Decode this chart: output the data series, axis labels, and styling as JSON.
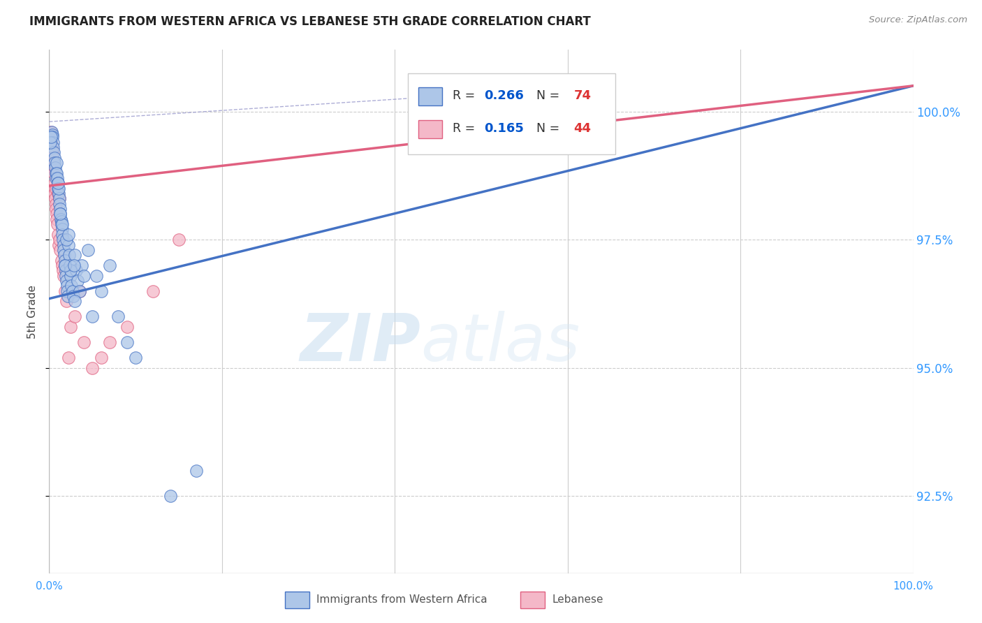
{
  "title": "IMMIGRANTS FROM WESTERN AFRICA VS LEBANESE 5TH GRADE CORRELATION CHART",
  "source": "Source: ZipAtlas.com",
  "ylabel": "5th Grade",
  "ytick_vals": [
    92.5,
    95.0,
    97.5,
    100.0
  ],
  "xmin": 0.0,
  "xmax": 100.0,
  "ymin": 91.0,
  "ymax": 101.2,
  "series1_label": "Immigrants from Western Africa",
  "series1_fill_color": "#adc6e8",
  "series1_edge_color": "#4472c4",
  "series1_R": "0.266",
  "series1_N": "74",
  "series2_label": "Lebanese",
  "series2_fill_color": "#f4b8c8",
  "series2_edge_color": "#e06080",
  "series2_R": "0.165",
  "series2_N": "44",
  "legend_R_color": "#0055cc",
  "legend_N_color": "#dd3333",
  "watermark_zip": "ZIP",
  "watermark_atlas": "atlas",
  "background_color": "#ffffff",
  "grid_color": "#cccccc",
  "blue_trend_x0": 0.0,
  "blue_trend_y0": 96.35,
  "blue_trend_x1": 100.0,
  "blue_trend_y1": 100.5,
  "pink_trend_x0": 0.0,
  "pink_trend_y0": 98.55,
  "pink_trend_x1": 100.0,
  "pink_trend_y1": 100.5,
  "dash_x0": 0.0,
  "dash_y0": 99.8,
  "dash_x1": 55.0,
  "dash_y1": 100.4,
  "blue_x": [
    0.2,
    0.3,
    0.35,
    0.4,
    0.45,
    0.5,
    0.55,
    0.6,
    0.65,
    0.7,
    0.75,
    0.8,
    0.85,
    0.9,
    0.95,
    1.0,
    1.05,
    1.1,
    1.15,
    1.2,
    1.25,
    1.3,
    1.35,
    1.4,
    1.45,
    1.5,
    1.55,
    1.6,
    1.65,
    1.7,
    1.75,
    1.8,
    1.85,
    1.9,
    1.95,
    2.0,
    2.05,
    2.1,
    2.15,
    2.2,
    2.3,
    2.4,
    2.5,
    2.6,
    2.7,
    2.8,
    3.0,
    3.1,
    3.3,
    3.5,
    3.8,
    4.0,
    4.5,
    5.0,
    5.5,
    6.0,
    7.0,
    8.0,
    9.0,
    10.0,
    0.15,
    0.25,
    1.1,
    1.5,
    2.0,
    2.5,
    3.0,
    1.0,
    1.3,
    1.8,
    2.2,
    2.9,
    14.0,
    17.0
  ],
  "blue_y": [
    99.5,
    99.6,
    99.55,
    99.5,
    99.4,
    99.3,
    99.2,
    99.1,
    99.0,
    98.9,
    98.8,
    98.7,
    99.0,
    98.8,
    98.7,
    98.6,
    98.5,
    98.4,
    98.3,
    98.2,
    98.1,
    98.0,
    97.9,
    97.85,
    97.8,
    97.7,
    97.6,
    97.5,
    97.4,
    97.3,
    97.2,
    97.1,
    97.0,
    96.9,
    96.8,
    96.7,
    96.6,
    96.5,
    96.4,
    97.4,
    97.2,
    97.0,
    96.8,
    96.6,
    96.5,
    96.4,
    97.2,
    96.9,
    96.7,
    96.5,
    97.0,
    96.8,
    97.3,
    96.0,
    96.8,
    96.5,
    97.0,
    96.0,
    95.5,
    95.2,
    99.4,
    99.5,
    98.5,
    97.8,
    97.5,
    96.9,
    96.3,
    98.6,
    98.0,
    97.0,
    97.6,
    97.0,
    92.5,
    93.0
  ],
  "pink_x": [
    0.1,
    0.15,
    0.2,
    0.25,
    0.3,
    0.35,
    0.4,
    0.45,
    0.5,
    0.55,
    0.6,
    0.65,
    0.7,
    0.75,
    0.8,
    0.85,
    0.9,
    0.95,
    1.0,
    1.1,
    1.2,
    1.3,
    1.4,
    1.5,
    1.6,
    1.7,
    1.8,
    2.0,
    2.5,
    3.0,
    3.5,
    4.0,
    5.0,
    6.0,
    7.0,
    9.0,
    12.0,
    15.0,
    55.0,
    2.2,
    0.6,
    0.8,
    1.0,
    1.2
  ],
  "pink_y": [
    99.5,
    99.55,
    99.6,
    99.4,
    99.3,
    99.2,
    99.1,
    99.0,
    98.9,
    98.8,
    98.5,
    98.4,
    98.3,
    98.2,
    98.1,
    98.0,
    97.9,
    97.8,
    97.6,
    97.4,
    97.5,
    97.3,
    97.1,
    97.0,
    96.9,
    96.8,
    96.5,
    96.3,
    95.8,
    96.0,
    96.5,
    95.5,
    95.0,
    95.2,
    95.5,
    95.8,
    96.5,
    97.5,
    100.0,
    95.2,
    98.6,
    98.5,
    98.4,
    98.3
  ]
}
